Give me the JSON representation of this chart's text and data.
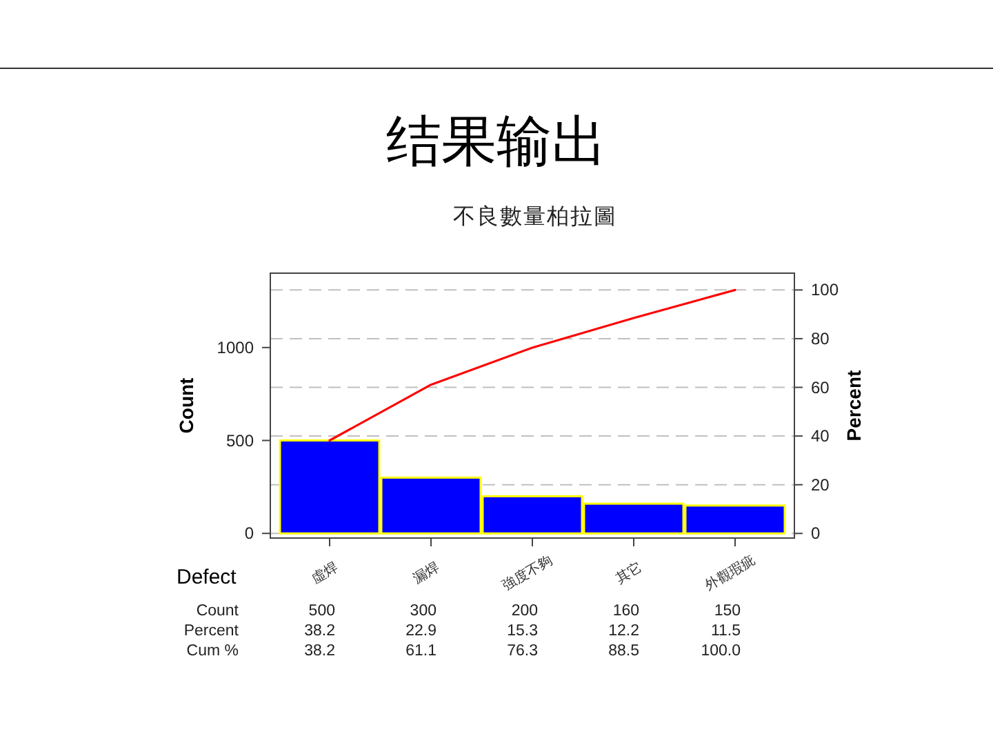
{
  "chart_data": {
    "type": "bar",
    "title": "结果输出",
    "subtitle": "不良數量柏拉圖",
    "xlabel": "Defect",
    "ylabel": "Count",
    "y2label": "Percent",
    "categories": [
      "虛焊",
      "漏焊",
      "強度不夠",
      "其它",
      "外觀瑕疵"
    ],
    "series": [
      {
        "color": "#0000ff",
        "values": [
          500,
          300,
          200,
          160,
          150
        ],
        "value_labels": [
          "500",
          "300",
          "200",
          "160",
          "150"
        ]
      },
      {
        "type": "line",
        "axis": "y2",
        "color": "#ff0000",
        "values": [
          38.2,
          61.1,
          76.3,
          88.5,
          100
        ],
        "value_labels": [
          "38.2",
          "61.1",
          "76.3",
          "88.5",
          "100.0"
        ]
      }
    ],
    "annotations": [
      "Count",
      "Percent",
      "38.2",
      "22.9",
      "15.3",
      "12.2",
      "11.5",
      "Cum %"
    ],
    "ylim": [
      -25,
      1400
    ],
    "yticks": [
      0,
      500,
      1000
    ],
    "y2lim": [
      -1.9,
      106.9
    ],
    "y2ticks": [
      0,
      20,
      40,
      60,
      80,
      100
    ],
    "grid": "y2"
  }
}
